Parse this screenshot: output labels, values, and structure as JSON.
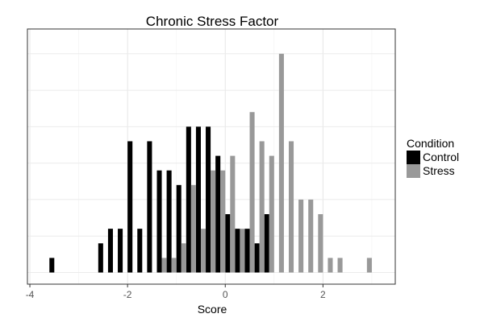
{
  "chart_data": {
    "type": "bar",
    "title": "Chronic Stress Factor",
    "xlabel": "Score",
    "ylabel": "",
    "xlim": [
      -4.05,
      3.48
    ],
    "ylim": [
      -0.8,
      16.7
    ],
    "xticks": [
      "-4",
      "-2",
      "0",
      "2"
    ],
    "xtick_values": [
      -4,
      -2,
      0,
      2
    ],
    "grid": true,
    "legend": {
      "title": "Condition",
      "position": "right"
    },
    "bin_width": 0.2,
    "series": [
      {
        "name": "Control",
        "color": "#000000",
        "centers": [
          -3.5,
          -2.5,
          -2.3,
          -2.1,
          -1.9,
          -1.7,
          -1.5,
          -1.3,
          -1.1,
          -0.9,
          -0.7,
          -0.5,
          -0.3,
          -0.1,
          0.1,
          0.3,
          0.5,
          0.7,
          0.9
        ],
        "counts": [
          1,
          2,
          3,
          3,
          9,
          3,
          9,
          7,
          7,
          6,
          10,
          10,
          10,
          8,
          4,
          3,
          3,
          2,
          4
        ]
      },
      {
        "name": "Stress",
        "color": "#999999",
        "centers": [
          -1.3,
          -1.1,
          -0.9,
          -0.7,
          -0.5,
          -0.3,
          -0.1,
          0.1,
          0.3,
          0.5,
          0.7,
          0.9,
          1.1,
          1.3,
          1.5,
          1.7,
          1.9,
          2.1,
          2.3,
          2.9
        ],
        "counts": [
          1,
          1,
          2,
          6,
          3,
          7,
          7,
          8,
          3,
          11,
          9,
          8,
          15,
          9,
          5,
          5,
          4,
          1,
          1,
          1
        ]
      }
    ]
  }
}
